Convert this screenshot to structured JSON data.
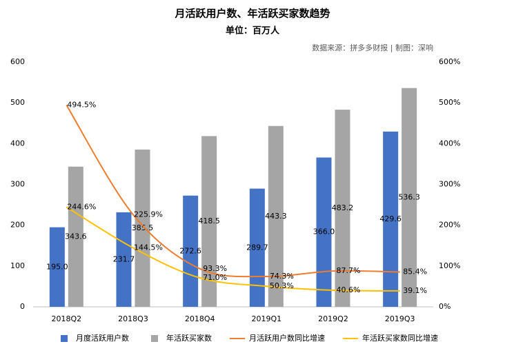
{
  "chart_data": {
    "type": "bar-line",
    "title": "月活跃用户数、年活跃买家数趋势",
    "subtitle": "单位：百万人",
    "source": "数据来源：拼多多财报 | 制图：深响",
    "categories": [
      "2018Q2",
      "2018Q3",
      "2018Q4",
      "2019Q1",
      "2019Q2",
      "2019Q3"
    ],
    "series": [
      {
        "name": "月度活跃用户数",
        "type": "bar",
        "color": "#4472c4",
        "values": [
          195.0,
          231.7,
          272.6,
          289.7,
          366.0,
          429.6
        ],
        "value_labels": [
          "195.0",
          "231.7",
          "272.6",
          "289.7",
          "366.0",
          "429.6"
        ]
      },
      {
        "name": "年活跃买家数",
        "type": "bar",
        "color": "#a5a5a5",
        "values": [
          343.6,
          385.5,
          418.5,
          443.3,
          483.2,
          536.3
        ],
        "value_labels": [
          "343.6",
          "385.5",
          "418.5",
          "443.3",
          "483.2",
          "536.3"
        ]
      },
      {
        "name": "月活跃用户数同比增速",
        "type": "line",
        "axis": "y2",
        "color": "#ed7d31",
        "values": [
          494.5,
          225.9,
          93.3,
          74.3,
          87.7,
          85.4
        ],
        "value_labels": [
          "494.5%",
          "225.9%",
          "93.3%",
          "74.3%",
          "87.7%",
          "85.4%"
        ]
      },
      {
        "name": "年活跃买家数同比增速",
        "type": "line",
        "axis": "y2",
        "color": "#ffc000",
        "values": [
          244.6,
          144.5,
          71.0,
          50.3,
          40.6,
          39.1
        ],
        "value_labels": [
          "244.6%",
          "144.5%",
          "71.0%",
          "50.3%",
          "40.6%",
          "39.1%"
        ]
      }
    ],
    "ylim": [
      0,
      600
    ],
    "yticks": [
      0,
      100,
      200,
      300,
      400,
      500,
      600
    ],
    "y2lim": [
      0,
      600
    ],
    "y2ticks": [
      {
        "value": 0,
        "label": "0%"
      },
      {
        "value": 100,
        "label": "100%"
      },
      {
        "value": 200,
        "label": "200%"
      },
      {
        "value": 300,
        "label": "300%"
      },
      {
        "value": 400,
        "label": "400%"
      },
      {
        "value": 500,
        "label": "500%"
      },
      {
        "value": 600,
        "label": "600%"
      }
    ],
    "grid": false,
    "legend": "bottom"
  }
}
